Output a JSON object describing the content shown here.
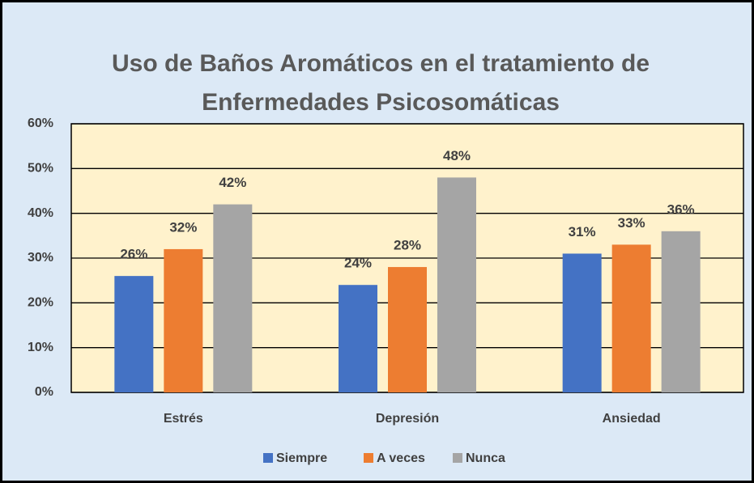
{
  "chart_data": {
    "type": "bar",
    "title": [
      "Uso de Baños Aromáticos en el tratamiento de",
      "Enfermedades Psicosomáticas"
    ],
    "categories": [
      "Estrés",
      "Depresión",
      "Ansiedad"
    ],
    "series": [
      {
        "name": "Siempre",
        "color": "#4472c4",
        "values": [
          26,
          24,
          31
        ],
        "value_labels": [
          "26%",
          "24%",
          "31%"
        ]
      },
      {
        "name": "A veces",
        "color": "#ed7d31",
        "values": [
          32,
          28,
          33
        ],
        "value_labels": [
          "32%",
          "28%",
          "33%"
        ]
      },
      {
        "name": "Nunca",
        "color": "#a5a5a5",
        "values": [
          42,
          48,
          36
        ],
        "value_labels": [
          "42%",
          "48%",
          "36%"
        ]
      }
    ],
    "ylim": [
      0,
      60
    ],
    "yticks": [
      {
        "value": 0,
        "label": "0%"
      },
      {
        "value": 10,
        "label": "10%"
      },
      {
        "value": 20,
        "label": "20%"
      },
      {
        "value": 30,
        "label": "30%"
      },
      {
        "value": 40,
        "label": "40%"
      },
      {
        "value": 50,
        "label": "50%"
      },
      {
        "value": 60,
        "label": "60%"
      }
    ],
    "grid": true,
    "legend": "bottom"
  }
}
